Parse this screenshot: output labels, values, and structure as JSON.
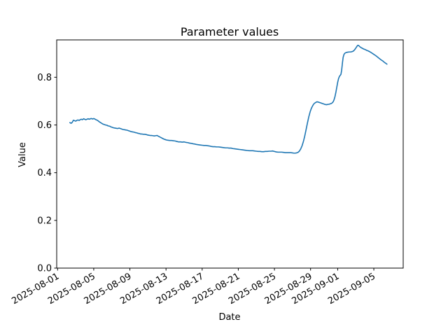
{
  "figure": {
    "background": "#ffffff",
    "spine_color": "#000000"
  },
  "chart_data": {
    "type": "line",
    "title": "Parameter values",
    "xlabel": "Date",
    "ylabel": "Value",
    "grid": false,
    "legend": "none",
    "line_color": "#1f77b4",
    "x_unit": "days since 2025-08-01",
    "xlim": [
      -0.1,
      38.25
    ],
    "ylim": [
      0.0,
      0.9566
    ],
    "x_tick_days": [
      0,
      4,
      8,
      12,
      16,
      20,
      24,
      28,
      31,
      35
    ],
    "x_tick_labels": [
      "2025-08-01",
      "2025-08-05",
      "2025-08-09",
      "2025-08-13",
      "2025-08-17",
      "2025-08-21",
      "2025-08-25",
      "2025-08-29",
      "2025-09-01",
      "2025-09-05"
    ],
    "x_tick_rotation_deg": 30,
    "y_tick_values": [
      0.0,
      0.2,
      0.4,
      0.6,
      0.8
    ],
    "y_tick_labels": [
      "0.0",
      "0.2",
      "0.4",
      "0.6",
      "0.8"
    ],
    "series": [
      {
        "name": "parameter-values",
        "color": "#1f77b4",
        "points": [
          [
            1.36,
            0.61
          ],
          [
            1.5,
            0.607
          ],
          [
            1.62,
            0.611
          ],
          [
            1.75,
            0.62
          ],
          [
            1.88,
            0.618
          ],
          [
            2.0,
            0.616
          ],
          [
            2.12,
            0.619
          ],
          [
            2.25,
            0.621
          ],
          [
            2.38,
            0.619
          ],
          [
            2.5,
            0.622
          ],
          [
            2.62,
            0.624
          ],
          [
            2.75,
            0.622
          ],
          [
            2.88,
            0.626
          ],
          [
            3.0,
            0.624
          ],
          [
            3.12,
            0.622
          ],
          [
            3.25,
            0.624
          ],
          [
            3.38,
            0.626
          ],
          [
            3.5,
            0.624
          ],
          [
            3.62,
            0.626
          ],
          [
            3.75,
            0.627
          ],
          [
            3.88,
            0.625
          ],
          [
            4.0,
            0.627
          ],
          [
            4.12,
            0.625
          ],
          [
            4.25,
            0.622
          ],
          [
            4.38,
            0.62
          ],
          [
            4.5,
            0.617
          ],
          [
            4.62,
            0.613
          ],
          [
            4.75,
            0.61
          ],
          [
            4.88,
            0.607
          ],
          [
            5.0,
            0.604
          ],
          [
            5.15,
            0.602
          ],
          [
            5.3,
            0.6
          ],
          [
            5.45,
            0.599
          ],
          [
            5.6,
            0.596
          ],
          [
            5.75,
            0.595
          ],
          [
            5.9,
            0.592
          ],
          [
            6.05,
            0.59
          ],
          [
            6.2,
            0.588
          ],
          [
            6.35,
            0.587
          ],
          [
            6.5,
            0.586
          ],
          [
            6.65,
            0.585
          ],
          [
            6.8,
            0.587
          ],
          [
            6.95,
            0.585
          ],
          [
            7.1,
            0.583
          ],
          [
            7.25,
            0.581
          ],
          [
            7.4,
            0.58
          ],
          [
            7.55,
            0.579
          ],
          [
            7.7,
            0.578
          ],
          [
            7.85,
            0.576
          ],
          [
            8.0,
            0.574
          ],
          [
            8.15,
            0.572
          ],
          [
            8.3,
            0.571
          ],
          [
            8.45,
            0.57
          ],
          [
            8.6,
            0.568
          ],
          [
            8.75,
            0.567
          ],
          [
            8.9,
            0.565
          ],
          [
            9.05,
            0.564
          ],
          [
            9.2,
            0.562
          ],
          [
            9.35,
            0.562
          ],
          [
            9.5,
            0.561
          ],
          [
            9.65,
            0.561
          ],
          [
            9.8,
            0.56
          ],
          [
            9.95,
            0.558
          ],
          [
            10.1,
            0.557
          ],
          [
            10.25,
            0.556
          ],
          [
            10.4,
            0.556
          ],
          [
            10.55,
            0.555
          ],
          [
            10.7,
            0.554
          ],
          [
            10.85,
            0.555
          ],
          [
            11.0,
            0.556
          ],
          [
            11.15,
            0.553
          ],
          [
            11.3,
            0.55
          ],
          [
            11.45,
            0.547
          ],
          [
            11.6,
            0.544
          ],
          [
            11.75,
            0.541
          ],
          [
            11.9,
            0.539
          ],
          [
            12.05,
            0.537
          ],
          [
            12.2,
            0.536
          ],
          [
            12.4,
            0.535
          ],
          [
            12.6,
            0.535
          ],
          [
            12.8,
            0.534
          ],
          [
            13.0,
            0.533
          ],
          [
            13.2,
            0.531
          ],
          [
            13.4,
            0.529
          ],
          [
            13.6,
            0.529
          ],
          [
            13.8,
            0.528
          ],
          [
            14.0,
            0.529
          ],
          [
            14.2,
            0.527
          ],
          [
            14.4,
            0.526
          ],
          [
            14.6,
            0.524
          ],
          [
            14.8,
            0.523
          ],
          [
            15.0,
            0.521
          ],
          [
            15.2,
            0.52
          ],
          [
            15.4,
            0.518
          ],
          [
            15.6,
            0.517
          ],
          [
            15.8,
            0.516
          ],
          [
            16.0,
            0.515
          ],
          [
            16.2,
            0.514
          ],
          [
            16.4,
            0.514
          ],
          [
            16.6,
            0.513
          ],
          [
            16.8,
            0.512
          ],
          [
            17.0,
            0.51
          ],
          [
            17.2,
            0.509
          ],
          [
            17.4,
            0.509
          ],
          [
            17.6,
            0.508
          ],
          [
            17.8,
            0.508
          ],
          [
            18.0,
            0.507
          ],
          [
            18.2,
            0.506
          ],
          [
            18.4,
            0.505
          ],
          [
            18.6,
            0.504
          ],
          [
            18.8,
            0.504
          ],
          [
            19.0,
            0.503
          ],
          [
            19.2,
            0.503
          ],
          [
            19.4,
            0.501
          ],
          [
            19.6,
            0.5
          ],
          [
            19.8,
            0.499
          ],
          [
            20.0,
            0.498
          ],
          [
            20.2,
            0.497
          ],
          [
            20.4,
            0.496
          ],
          [
            20.6,
            0.495
          ],
          [
            20.8,
            0.494
          ],
          [
            21.0,
            0.493
          ],
          [
            21.2,
            0.492
          ],
          [
            21.4,
            0.492
          ],
          [
            21.6,
            0.492
          ],
          [
            21.8,
            0.491
          ],
          [
            22.0,
            0.49
          ],
          [
            22.2,
            0.489
          ],
          [
            22.4,
            0.489
          ],
          [
            22.6,
            0.488
          ],
          [
            22.8,
            0.488
          ],
          [
            23.0,
            0.489
          ],
          [
            23.2,
            0.489
          ],
          [
            23.4,
            0.49
          ],
          [
            23.6,
            0.49
          ],
          [
            23.8,
            0.491
          ],
          [
            24.0,
            0.489
          ],
          [
            24.2,
            0.487
          ],
          [
            24.4,
            0.486
          ],
          [
            24.6,
            0.486
          ],
          [
            24.8,
            0.486
          ],
          [
            25.0,
            0.485
          ],
          [
            25.2,
            0.484
          ],
          [
            25.4,
            0.484
          ],
          [
            25.6,
            0.484
          ],
          [
            25.8,
            0.484
          ],
          [
            26.0,
            0.483
          ],
          [
            26.15,
            0.482
          ],
          [
            26.3,
            0.482
          ],
          [
            26.45,
            0.483
          ],
          [
            26.6,
            0.485
          ],
          [
            26.75,
            0.49
          ],
          [
            26.9,
            0.499
          ],
          [
            27.05,
            0.512
          ],
          [
            27.2,
            0.53
          ],
          [
            27.35,
            0.553
          ],
          [
            27.5,
            0.58
          ],
          [
            27.65,
            0.608
          ],
          [
            27.8,
            0.634
          ],
          [
            27.95,
            0.655
          ],
          [
            28.1,
            0.671
          ],
          [
            28.25,
            0.682
          ],
          [
            28.4,
            0.69
          ],
          [
            28.55,
            0.694
          ],
          [
            28.7,
            0.697
          ],
          [
            28.85,
            0.696
          ],
          [
            29.0,
            0.694
          ],
          [
            29.15,
            0.692
          ],
          [
            29.3,
            0.69
          ],
          [
            29.45,
            0.688
          ],
          [
            29.6,
            0.686
          ],
          [
            29.75,
            0.685
          ],
          [
            29.9,
            0.686
          ],
          [
            30.05,
            0.687
          ],
          [
            30.2,
            0.689
          ],
          [
            30.35,
            0.691
          ],
          [
            30.5,
            0.697
          ],
          [
            30.6,
            0.706
          ],
          [
            30.7,
            0.719
          ],
          [
            30.8,
            0.737
          ],
          [
            30.9,
            0.758
          ],
          [
            31.0,
            0.779
          ],
          [
            31.1,
            0.795
          ],
          [
            31.2,
            0.804
          ],
          [
            31.28,
            0.808
          ],
          [
            31.36,
            0.812
          ],
          [
            31.44,
            0.83
          ],
          [
            31.52,
            0.858
          ],
          [
            31.6,
            0.883
          ],
          [
            31.7,
            0.896
          ],
          [
            31.8,
            0.901
          ],
          [
            31.95,
            0.904
          ],
          [
            32.1,
            0.905
          ],
          [
            32.25,
            0.906
          ],
          [
            32.4,
            0.906
          ],
          [
            32.55,
            0.907
          ],
          [
            32.7,
            0.909
          ],
          [
            32.85,
            0.914
          ],
          [
            33.0,
            0.922
          ],
          [
            33.12,
            0.929
          ],
          [
            33.22,
            0.934
          ],
          [
            33.32,
            0.933
          ],
          [
            33.45,
            0.928
          ],
          [
            33.6,
            0.924
          ],
          [
            33.75,
            0.921
          ],
          [
            33.9,
            0.918
          ],
          [
            34.05,
            0.916
          ],
          [
            34.2,
            0.913
          ],
          [
            34.4,
            0.91
          ],
          [
            34.6,
            0.906
          ],
          [
            34.8,
            0.901
          ],
          [
            35.0,
            0.896
          ],
          [
            35.2,
            0.891
          ],
          [
            35.4,
            0.885
          ],
          [
            35.6,
            0.879
          ],
          [
            35.8,
            0.873
          ],
          [
            36.0,
            0.868
          ],
          [
            36.15,
            0.863
          ],
          [
            36.3,
            0.859
          ],
          [
            36.45,
            0.855
          ]
        ]
      }
    ]
  }
}
